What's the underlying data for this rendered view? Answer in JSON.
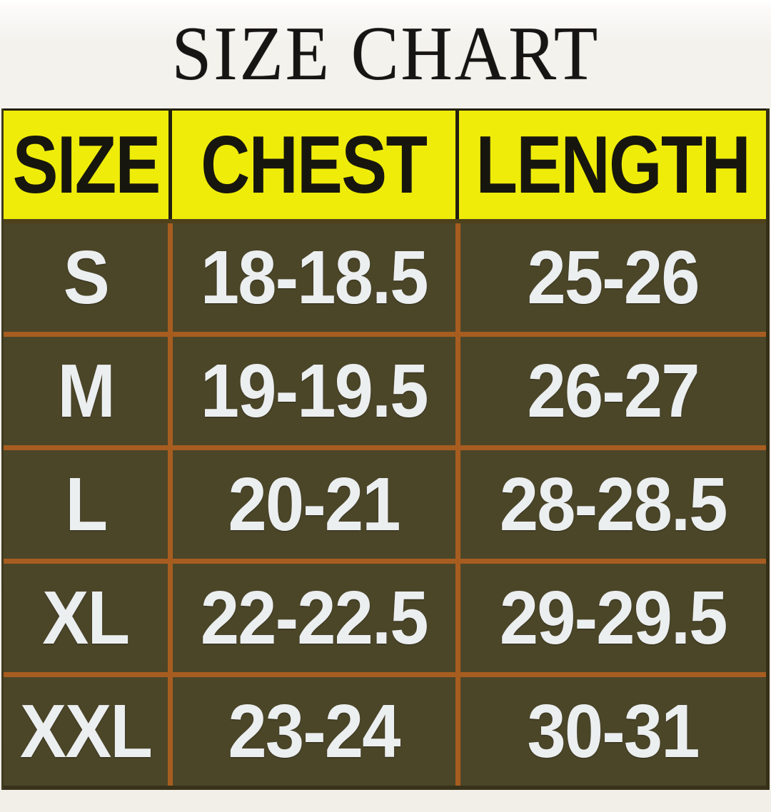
{
  "title": "SIZE CHART",
  "table": {
    "headers": {
      "size": "SIZE",
      "chest": "CHEST",
      "length": "LENGTH"
    },
    "rows": [
      {
        "size": "S",
        "chest": "18-18.5",
        "length": "25-26"
      },
      {
        "size": "M",
        "chest": "19-19.5",
        "length": "26-27"
      },
      {
        "size": "L",
        "chest": "20-21",
        "length": "28-28.5"
      },
      {
        "size": "XL",
        "chest": "22-22.5",
        "length": "29-29.5"
      },
      {
        "size": "XXL",
        "chest": "23-24",
        "length": "30-31"
      }
    ]
  },
  "chart_data": {
    "type": "table",
    "title": "SIZE CHART",
    "columns": [
      "SIZE",
      "CHEST",
      "LENGTH"
    ],
    "rows": [
      [
        "S",
        "18-18.5",
        "25-26"
      ],
      [
        "M",
        "19-19.5",
        "26-27"
      ],
      [
        "L",
        "20-21",
        "28-28.5"
      ],
      [
        "XL",
        "22-22.5",
        "29-29.5"
      ],
      [
        "XXL",
        "23-24",
        "30-31"
      ]
    ]
  },
  "colors": {
    "page_background": "#f3f1ec",
    "title_text": "#161513",
    "header_background": "#efec0a",
    "header_text": "#17160e",
    "header_divider": "#23200f",
    "row_background": "#4c4629",
    "row_divider": "#a75d1f",
    "cell_text": "#eceff0"
  }
}
